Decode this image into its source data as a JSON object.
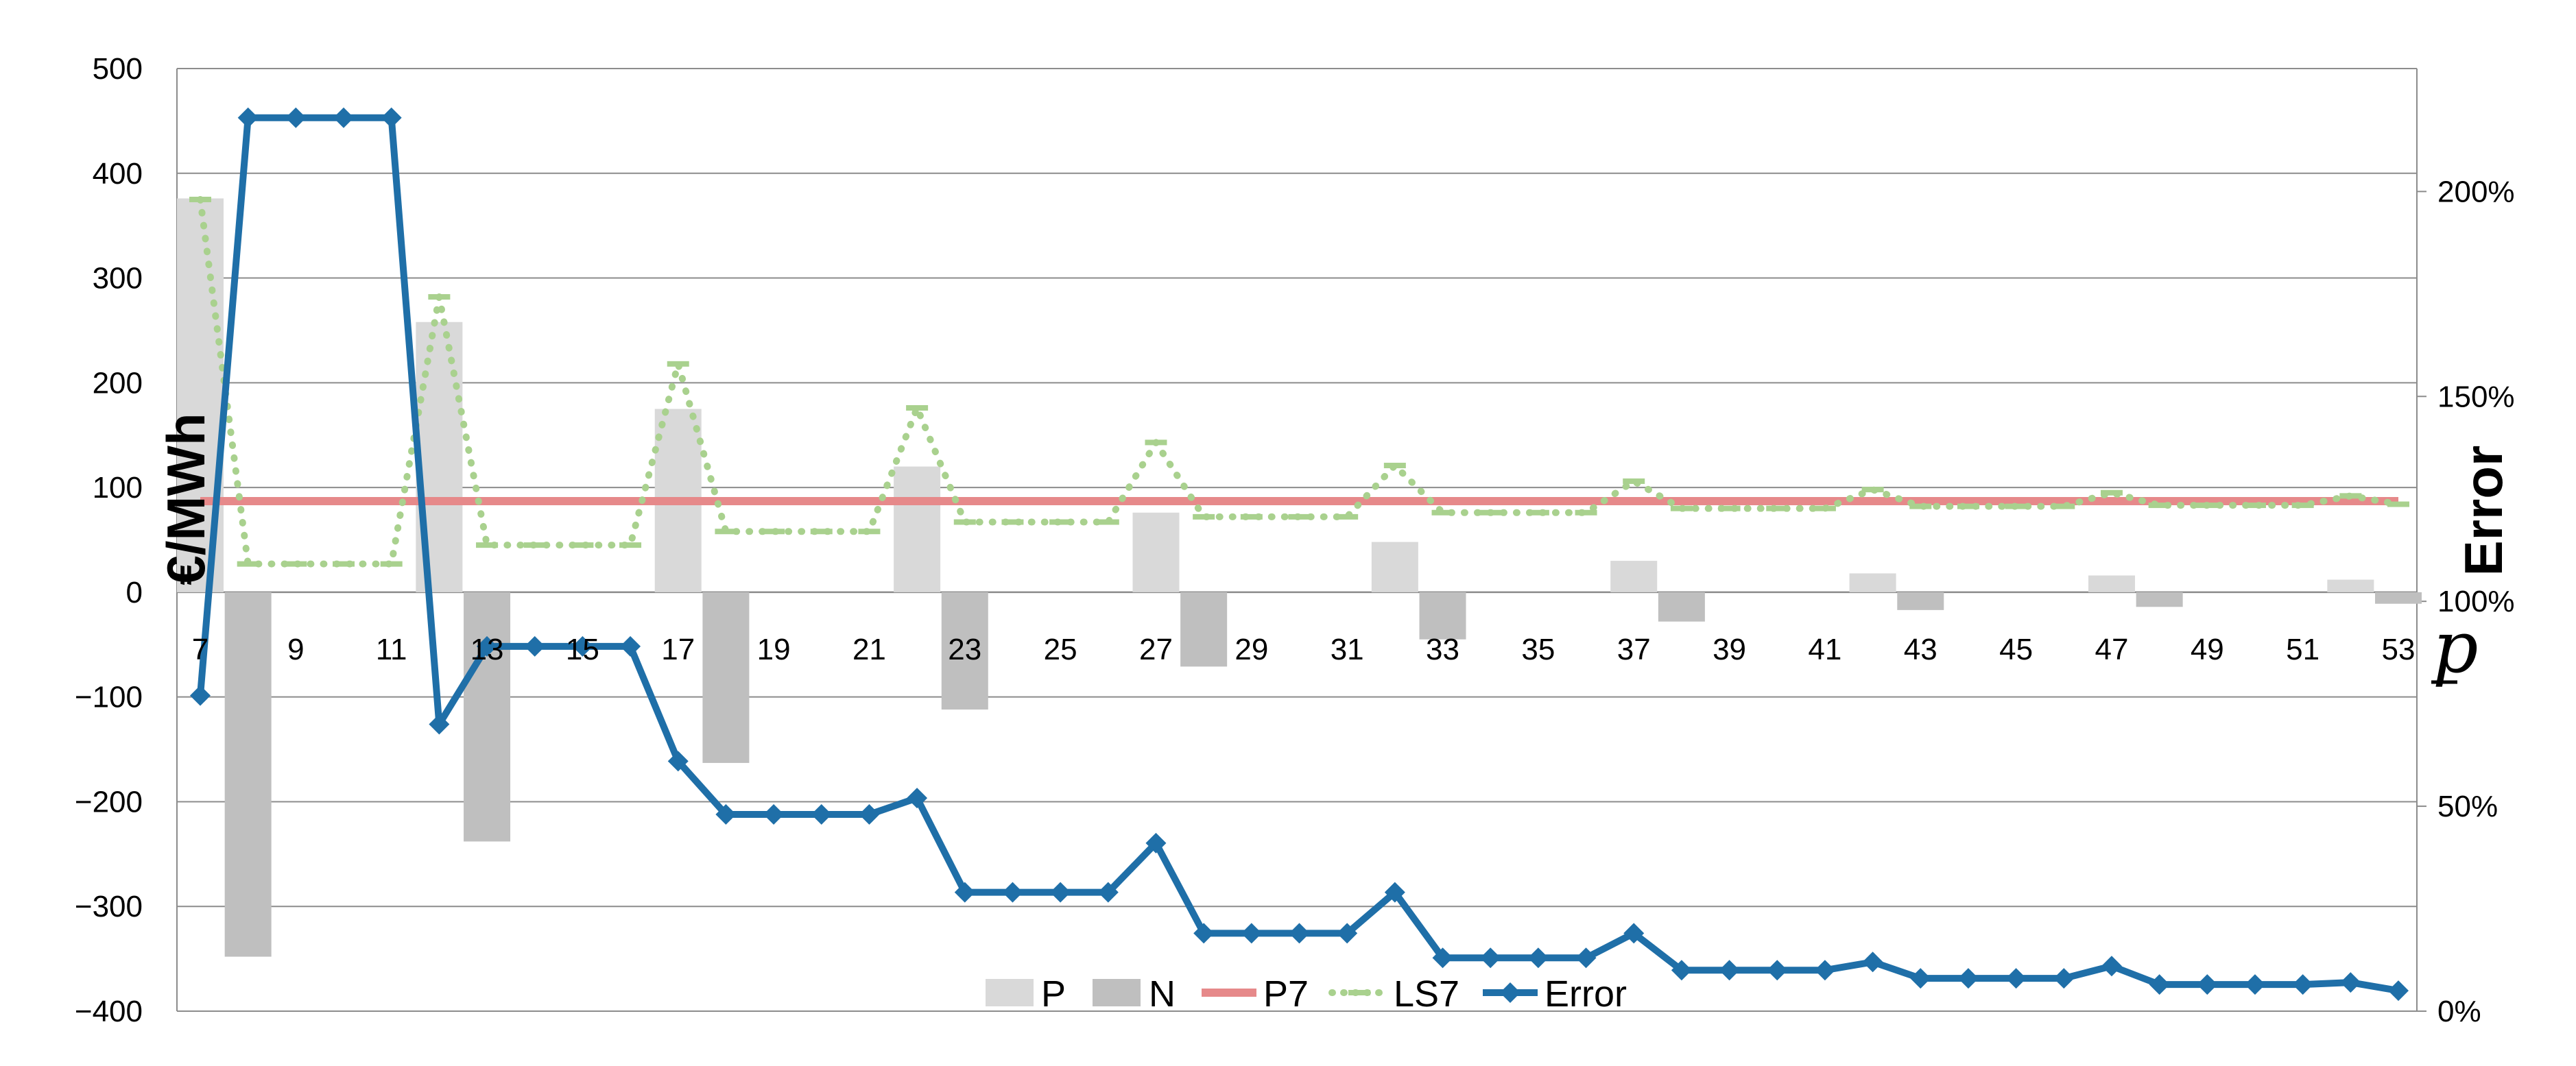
{
  "chart_data": {
    "type": "bar",
    "x": [
      7,
      8,
      9,
      10,
      11,
      12,
      13,
      14,
      15,
      16,
      17,
      18,
      19,
      20,
      21,
      22,
      23,
      24,
      25,
      26,
      27,
      28,
      29,
      30,
      31,
      32,
      33,
      34,
      35,
      36,
      37,
      38,
      39,
      40,
      41,
      42,
      43,
      44,
      45,
      46,
      47,
      48,
      49,
      50,
      51,
      52,
      53
    ],
    "x_tick_labels": [
      "7",
      "9",
      "11",
      "13",
      "15",
      "17",
      "19",
      "21",
      "23",
      "25",
      "27",
      "29",
      "31",
      "33",
      "35",
      "37",
      "39",
      "41",
      "43",
      "45",
      "47",
      "49",
      "51",
      "53"
    ],
    "x_axis_symbol": "p",
    "ylabel": "€/MWh",
    "ylim": [
      -400,
      500
    ],
    "y_tick_labels": [
      "500",
      "400",
      "300",
      "200",
      "100",
      "0",
      "−100",
      "−200",
      "−300",
      "−400"
    ],
    "y2label": "Error",
    "y2lim": [
      0,
      2.3
    ],
    "y2_tick_labels": [
      "200%",
      "150%",
      "100%",
      "50%",
      "0%"
    ],
    "grid": "horizontal",
    "legend_position": "bottom-center",
    "series": [
      {
        "name": "P",
        "type": "bar",
        "axis": "left",
        "color": "#d9d9d9",
        "x": [
          7,
          12,
          17,
          22,
          27,
          32,
          37,
          42,
          47,
          52
        ],
        "values": [
          376,
          258,
          175,
          120,
          76,
          48,
          30,
          18,
          16,
          12
        ]
      },
      {
        "name": "N",
        "type": "bar",
        "axis": "left",
        "color": "#bfbfbf",
        "x": [
          8,
          13,
          18,
          23,
          28,
          33,
          38,
          43,
          48,
          53
        ],
        "values": [
          -348,
          -238,
          -163,
          -112,
          -71,
          -45,
          -28,
          -17,
          -14,
          -11
        ]
      },
      {
        "name": "P7",
        "type": "line",
        "axis": "left",
        "color": "#e6898a",
        "values": [
          87,
          87,
          87,
          87,
          87,
          87,
          87,
          87,
          87,
          87,
          87,
          87,
          87,
          87,
          87,
          87,
          87,
          87,
          87,
          87,
          87,
          87,
          87,
          87,
          87,
          87,
          87,
          87,
          87,
          87,
          87,
          87,
          87,
          87,
          87,
          87,
          87,
          87,
          87,
          87,
          87,
          87,
          87,
          87,
          87,
          87,
          87
        ]
      },
      {
        "name": "LS7",
        "type": "line",
        "axis": "left",
        "color": "#a9d18e",
        "values": [
          375,
          27,
          27,
          27,
          27,
          282,
          45,
          45,
          45,
          45,
          218,
          58,
          58,
          58,
          58,
          176,
          67,
          67,
          67,
          67,
          143,
          72,
          72,
          72,
          72,
          121,
          76,
          76,
          76,
          76,
          106,
          80,
          80,
          80,
          80,
          98,
          82,
          82,
          82,
          82,
          95,
          83,
          83,
          83,
          83,
          92,
          84
        ]
      },
      {
        "name": "Error",
        "type": "line",
        "axis": "right",
        "color": "#1f6fa8",
        "values": [
          0.77,
          2.18,
          2.18,
          2.18,
          2.18,
          0.7,
          0.89,
          0.89,
          0.89,
          0.89,
          0.61,
          0.48,
          0.48,
          0.48,
          0.48,
          0.52,
          0.29,
          0.29,
          0.29,
          0.29,
          0.41,
          0.19,
          0.19,
          0.19,
          0.19,
          0.29,
          0.13,
          0.13,
          0.13,
          0.13,
          0.19,
          0.1,
          0.1,
          0.1,
          0.1,
          0.12,
          0.08,
          0.08,
          0.08,
          0.08,
          0.11,
          0.065,
          0.065,
          0.065,
          0.065,
          0.07,
          0.05
        ]
      }
    ]
  }
}
